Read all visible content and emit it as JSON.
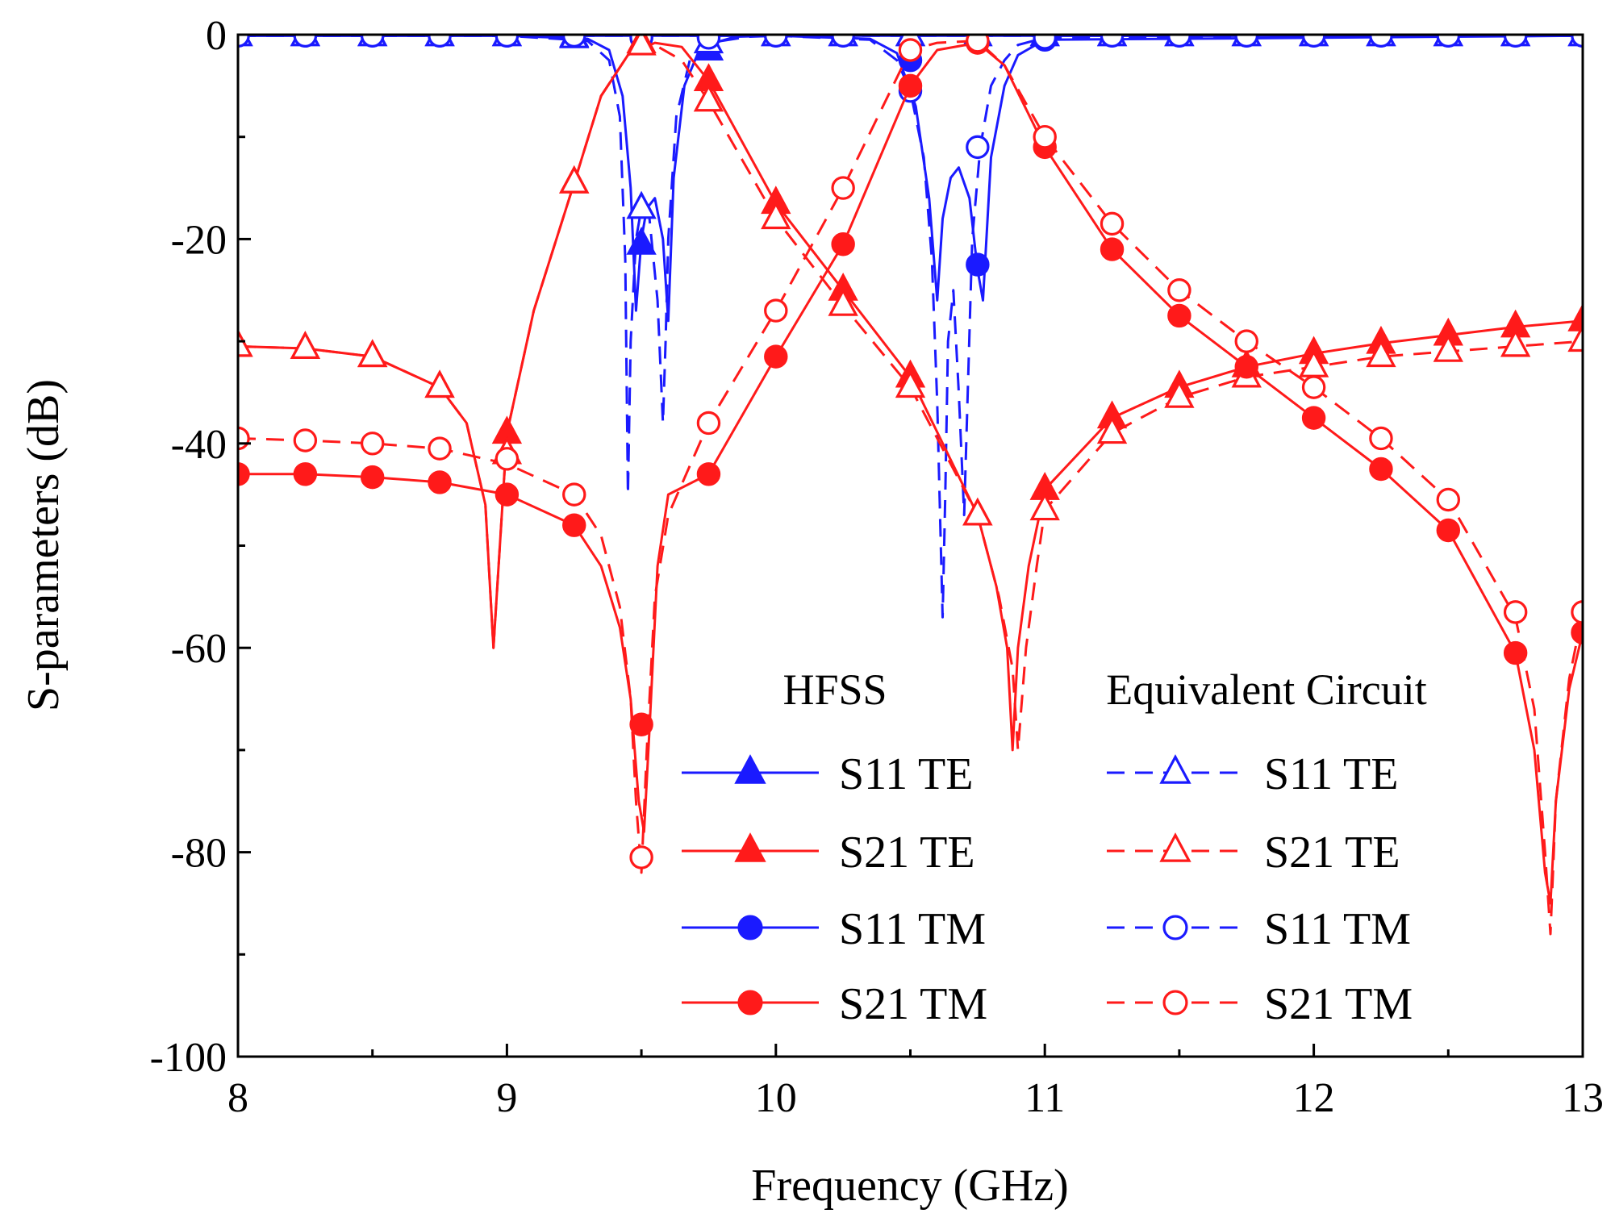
{
  "chart_data": {
    "type": "line",
    "title": "",
    "xlabel": "Frequency (GHz)",
    "ylabel": "S-parameters (dB)",
    "xlim": [
      8,
      13
    ],
    "ylim": [
      -100,
      0
    ],
    "x_ticks": [
      8,
      9,
      10,
      11,
      12,
      13
    ],
    "y_ticks": [
      0,
      -20,
      -40,
      -60,
      -80,
      -100
    ],
    "x_tick_labels": [
      "8",
      "9",
      "10",
      "11",
      "12",
      "13"
    ],
    "y_tick_labels": [
      "0",
      "-20",
      "-40",
      "-60",
      "-80",
      "-100"
    ],
    "grid": false,
    "legend": {
      "placement": "bottom-right",
      "groups": [
        {
          "heading": "HFSS",
          "style": "solid",
          "marker_fill": "filled"
        },
        {
          "heading": "Equivalent Circuit",
          "style": "dashed",
          "marker_fill": "open"
        }
      ],
      "entries": [
        {
          "label": "S11 TE",
          "color": "#1a1aff",
          "marker": "triangle"
        },
        {
          "label": "S21 TE",
          "color": "#ff1a1a",
          "marker": "triangle"
        },
        {
          "label": "S11 TM",
          "color": "#1a1aff",
          "marker": "circle"
        },
        {
          "label": "S21 TM",
          "color": "#ff1a1a",
          "marker": "circle"
        }
      ]
    },
    "series": [
      {
        "name": "S11 TE (HFSS)",
        "group": "HFSS",
        "color": "#1a1aff",
        "style": "solid",
        "marker": "triangle",
        "filled": true,
        "x": [
          8,
          9,
          9.3,
          9.38,
          9.43,
          9.46,
          9.48,
          9.5,
          9.52,
          9.55,
          9.58,
          9.6,
          9.62,
          9.66,
          9.72,
          9.85,
          10,
          13
        ],
        "y": [
          -0.1,
          -0.1,
          -0.4,
          -1.5,
          -6,
          -15,
          -27,
          -20,
          -17,
          -16,
          -20,
          -28,
          -14,
          -5,
          -1.2,
          -0.2,
          -0.1,
          -0.1
        ],
        "marker_x": [
          8,
          8.25,
          8.5,
          8.75,
          9,
          9.25,
          9.5,
          9.75,
          10,
          10.25,
          10.5,
          10.75,
          11,
          11.25,
          11.5,
          11.75,
          12,
          12.25,
          12.5,
          12.75,
          13
        ],
        "marker_y": [
          -0.1,
          -0.1,
          -0.1,
          -0.1,
          -0.1,
          -0.2,
          -20.5,
          -1.5,
          -0.1,
          -0.1,
          -0.1,
          -0.1,
          -0.1,
          -0.1,
          -0.1,
          -0.1,
          -0.1,
          -0.1,
          -0.1,
          -0.1,
          -0.1
        ]
      },
      {
        "name": "S11 TE (Equivalent Circuit)",
        "group": "Equivalent Circuit",
        "color": "#1a1aff",
        "style": "dashed",
        "marker": "triangle",
        "filled": false,
        "x": [
          8,
          9,
          9.3,
          9.38,
          9.42,
          9.44,
          9.45,
          9.46,
          9.48,
          9.5,
          9.53,
          9.56,
          9.58,
          9.59,
          9.6,
          9.63,
          9.68,
          9.75,
          9.9,
          10,
          13
        ],
        "y": [
          -0.1,
          -0.1,
          -0.6,
          -2.5,
          -8,
          -22,
          -45,
          -30,
          -20,
          -17,
          -18,
          -26,
          -38,
          -30,
          -20,
          -8,
          -2.5,
          -0.8,
          -0.2,
          -0.1,
          -0.1
        ],
        "marker_x": [
          8,
          8.25,
          8.5,
          8.75,
          9,
          9.25,
          9.5,
          9.75,
          10,
          10.25,
          10.5,
          10.75,
          11,
          11.25,
          11.5,
          11.75,
          12,
          12.25,
          12.5,
          12.75,
          13
        ],
        "marker_y": [
          -0.1,
          -0.1,
          -0.1,
          -0.1,
          -0.1,
          -0.3,
          -17,
          -0.8,
          -0.1,
          -0.1,
          -0.1,
          -0.1,
          -0.1,
          -0.1,
          -0.1,
          -0.1,
          -0.1,
          -0.1,
          -0.1,
          -0.1,
          -0.1
        ]
      },
      {
        "name": "S11 TM (HFSS)",
        "group": "HFSS",
        "color": "#1a1aff",
        "style": "solid",
        "marker": "circle",
        "filled": true,
        "x": [
          8,
          10,
          10.35,
          10.45,
          10.52,
          10.57,
          10.6,
          10.62,
          10.65,
          10.68,
          10.72,
          10.75,
          10.77,
          10.8,
          10.85,
          10.9,
          11,
          13
        ],
        "y": [
          -0.1,
          -0.1,
          -0.4,
          -1.8,
          -7,
          -16,
          -26,
          -18,
          -14,
          -13,
          -16,
          -23,
          -26,
          -12,
          -5,
          -2,
          -0.5,
          -0.1
        ],
        "marker_x": [
          8,
          8.25,
          8.5,
          8.75,
          9,
          9.25,
          9.5,
          9.75,
          10,
          10.25,
          10.5,
          10.75,
          11,
          11.25,
          11.5,
          11.75,
          12,
          12.25,
          12.5,
          12.75,
          13
        ],
        "marker_y": [
          -0.1,
          -0.1,
          -0.1,
          -0.1,
          -0.1,
          -0.1,
          -0.3,
          -0.2,
          -0.1,
          -0.1,
          -2.5,
          -22.5,
          -0.5,
          -0.1,
          -0.1,
          -0.1,
          -0.1,
          -0.1,
          -0.1,
          -0.1,
          -0.1
        ]
      },
      {
        "name": "S11 TM (Equivalent Circuit)",
        "group": "Equivalent Circuit",
        "color": "#1a1aff",
        "style": "dashed",
        "marker": "circle",
        "filled": false,
        "x": [
          8,
          10,
          10.35,
          10.45,
          10.5,
          10.55,
          10.58,
          10.6,
          10.62,
          10.63,
          10.64,
          10.66,
          10.68,
          10.7,
          10.73,
          10.76,
          10.8,
          10.85,
          10.9,
          11,
          13
        ],
        "y": [
          -0.1,
          -0.1,
          -0.5,
          -2.5,
          -5.5,
          -12,
          -22,
          -36,
          -57,
          -45,
          -30,
          -25,
          -35,
          -47,
          -20,
          -11,
          -5,
          -2.5,
          -1,
          -0.3,
          -0.1
        ],
        "marker_x": [
          8,
          8.25,
          8.5,
          8.75,
          9,
          9.25,
          9.5,
          9.75,
          10,
          10.25,
          10.5,
          10.75,
          11,
          11.25,
          11.5,
          11.75,
          12,
          12.25,
          12.5,
          12.75,
          13
        ],
        "marker_y": [
          -0.1,
          -0.1,
          -0.1,
          -0.1,
          -0.1,
          -0.1,
          -0.3,
          -0.3,
          -0.1,
          -0.1,
          -5.5,
          -11,
          -0.3,
          -0.1,
          -0.1,
          -0.1,
          -0.1,
          -0.1,
          -0.1,
          -0.1,
          -0.1
        ]
      },
      {
        "name": "S21 TE (HFSS)",
        "group": "HFSS",
        "color": "#ff1a1a",
        "style": "solid",
        "marker": "triangle",
        "filled": true,
        "x": [
          8,
          8.25,
          8.5,
          8.75,
          8.85,
          8.92,
          8.95,
          9,
          9.1,
          9.25,
          9.35,
          9.45,
          9.55,
          9.65,
          9.75,
          10,
          10.25,
          10.5,
          10.75,
          10.82,
          10.86,
          10.88,
          10.9,
          10.94,
          11,
          11.25,
          11.5,
          11.75,
          12,
          12.25,
          12.5,
          12.75,
          13
        ],
        "y": [
          -30.5,
          -30.7,
          -31.5,
          -34.5,
          -38,
          -46,
          -60,
          -39,
          -27,
          -14.5,
          -6,
          -2,
          -0.8,
          -1.2,
          -4.5,
          -16.5,
          -25,
          -33.5,
          -47,
          -54,
          -60,
          -70,
          -60,
          -52,
          -44.5,
          -37.5,
          -34.5,
          -32.5,
          -31.2,
          -30.2,
          -29.4,
          -28.6,
          -28
        ],
        "marker_x": [
          8,
          8.25,
          8.5,
          8.75,
          9,
          9.25,
          9.5,
          9.75,
          10,
          10.25,
          10.5,
          10.75,
          11,
          11.25,
          11.5,
          11.75,
          12,
          12.25,
          12.5,
          12.75,
          13
        ],
        "marker_y": [
          -30.5,
          -30.7,
          -31.5,
          -34.5,
          -39,
          -14.5,
          -0.8,
          -4.5,
          -16.5,
          -25,
          -33.5,
          -47,
          -44.5,
          -37.5,
          -34.5,
          -32.5,
          -31.2,
          -30.2,
          -29.4,
          -28.6,
          -28
        ]
      },
      {
        "name": "S21 TE (Equivalent Circuit)",
        "group": "Equivalent Circuit",
        "color": "#ff1a1a",
        "style": "dashed",
        "marker": "triangle",
        "filled": false,
        "x": [
          8,
          8.25,
          8.5,
          8.75,
          8.85,
          8.92,
          8.95,
          9,
          9.1,
          9.25,
          9.35,
          9.45,
          9.55,
          9.65,
          9.75,
          10,
          10.25,
          10.5,
          10.75,
          10.83,
          10.88,
          10.9,
          10.93,
          10.97,
          11,
          11.25,
          11.5,
          11.75,
          12,
          12.25,
          12.5,
          12.75,
          13
        ],
        "y": [
          -30.5,
          -30.7,
          -31.5,
          -34.5,
          -38,
          -46,
          -60,
          -39,
          -27,
          -14.5,
          -6,
          -2,
          -1,
          -2.5,
          -6.5,
          -18,
          -26.5,
          -34.5,
          -47,
          -55,
          -62,
          -70,
          -60,
          -52,
          -46.5,
          -39,
          -35.5,
          -33.5,
          -32.5,
          -31.5,
          -31,
          -30.5,
          -30
        ],
        "marker_x": [
          8,
          8.25,
          8.5,
          8.75,
          9,
          9.25,
          9.5,
          9.75,
          10,
          10.25,
          10.5,
          10.75,
          11,
          11.25,
          11.5,
          11.75,
          12,
          12.25,
          12.5,
          12.75,
          13
        ],
        "marker_y": [
          -30.5,
          -30.7,
          -31.5,
          -34.5,
          -41,
          -14.5,
          -1,
          -6.5,
          -18,
          -26.5,
          -34.5,
          -47,
          -46.5,
          -39,
          -35.5,
          -33.5,
          -32.5,
          -31.5,
          -31,
          -30.5,
          -30
        ]
      },
      {
        "name": "S21 TM (HFSS)",
        "group": "HFSS",
        "color": "#ff1a1a",
        "style": "solid",
        "marker": "circle",
        "filled": true,
        "x": [
          8,
          8.25,
          8.5,
          8.75,
          9,
          9.25,
          9.35,
          9.42,
          9.46,
          9.49,
          9.51,
          9.53,
          9.56,
          9.6,
          9.75,
          10,
          10.25,
          10.5,
          10.6,
          10.75,
          10.85,
          11,
          11.25,
          11.5,
          11.75,
          12,
          12.25,
          12.5,
          12.75,
          12.82,
          12.86,
          12.88,
          12.9,
          12.95,
          13
        ],
        "y": [
          -43,
          -43,
          -43.3,
          -43.8,
          -45,
          -48,
          -52,
          -58,
          -65,
          -75,
          -78,
          -68,
          -52,
          -45,
          -43,
          -31.5,
          -20.5,
          -5,
          -1.5,
          -0.8,
          -3,
          -11,
          -21,
          -27.5,
          -32.5,
          -37.5,
          -42.5,
          -48.5,
          -60.5,
          -70,
          -82,
          -85,
          -75,
          -64,
          -58.5
        ],
        "marker_x": [
          8,
          8.25,
          8.5,
          8.75,
          9,
          9.25,
          9.5,
          9.75,
          10,
          10.25,
          10.5,
          10.75,
          11,
          11.25,
          11.5,
          11.75,
          12,
          12.25,
          12.5,
          12.75,
          13
        ],
        "marker_y": [
          -43,
          -43,
          -43.3,
          -43.8,
          -45,
          -48,
          -67.5,
          -43,
          -31.5,
          -20.5,
          -5,
          -0.8,
          -11,
          -21,
          -27.5,
          -32.5,
          -37.5,
          -42.5,
          -48.5,
          -60.5,
          -58.5
        ]
      },
      {
        "name": "S21 TM (Equivalent Circuit)",
        "group": "Equivalent Circuit",
        "color": "#ff1a1a",
        "style": "dashed",
        "marker": "circle",
        "filled": false,
        "x": [
          8,
          8.25,
          8.5,
          8.75,
          9,
          9.25,
          9.35,
          9.42,
          9.46,
          9.48,
          9.5,
          9.52,
          9.55,
          9.6,
          9.75,
          10,
          10.25,
          10.5,
          10.6,
          10.75,
          10.85,
          11,
          11.25,
          11.5,
          11.75,
          12,
          12.25,
          12.5,
          12.75,
          12.82,
          12.86,
          12.88,
          12.9,
          12.95,
          13
        ],
        "y": [
          -39.5,
          -39.7,
          -40,
          -40.5,
          -42,
          -45,
          -49,
          -56,
          -65,
          -75,
          -82,
          -70,
          -55,
          -47,
          -38,
          -27,
          -15,
          -1.5,
          -0.8,
          -0.6,
          -3,
          -10,
          -18.5,
          -25,
          -30,
          -34.5,
          -39.5,
          -45.5,
          -57,
          -66,
          -80,
          -88,
          -75,
          -63,
          -56.5
        ],
        "marker_x": [
          8,
          8.25,
          8.5,
          8.75,
          9,
          9.25,
          9.5,
          9.75,
          10,
          10.25,
          10.5,
          10.75,
          11,
          11.25,
          11.5,
          11.75,
          12,
          12.25,
          12.5,
          12.75,
          13
        ],
        "marker_y": [
          -39.5,
          -39.7,
          -40,
          -40.5,
          -41.5,
          -45,
          -80.5,
          -38,
          -27,
          -15,
          -1.5,
          -0.6,
          -10,
          -18.5,
          -25,
          -30,
          -34.5,
          -39.5,
          -45.5,
          -56.5,
          -56.5
        ]
      }
    ]
  }
}
